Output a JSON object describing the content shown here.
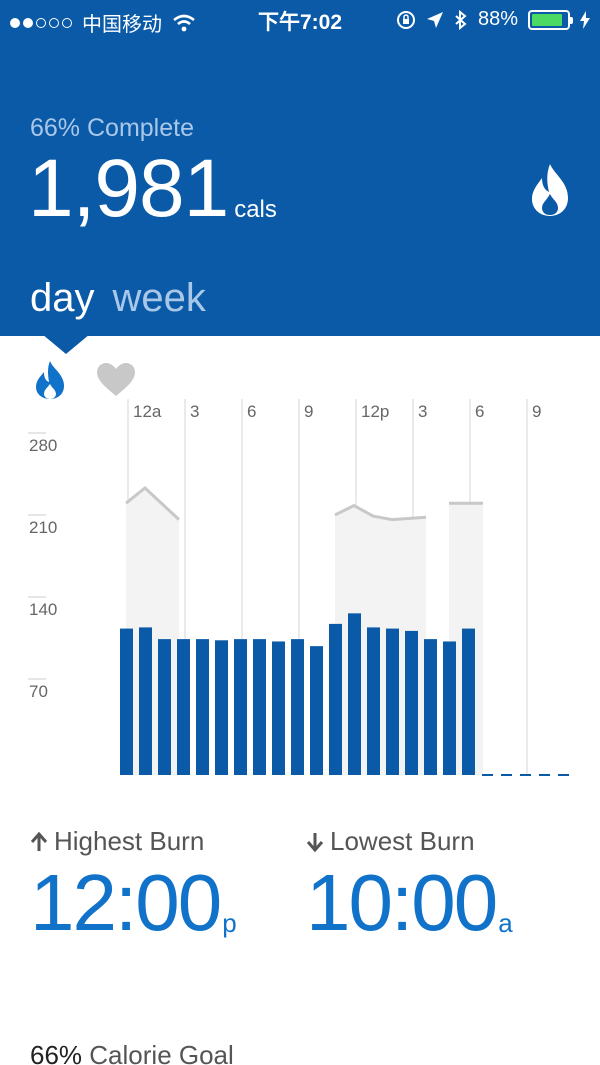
{
  "status_bar": {
    "carrier": "中国移动",
    "time": "下午7:02",
    "battery_percent": "88%",
    "battery_level": 0.88,
    "signal_bars_filled": 2,
    "signal_bars_total": 5
  },
  "header": {
    "progress_text": "66% Complete",
    "calories_value": "1,981",
    "calories_unit": "cals",
    "icon": "flame-icon"
  },
  "tabs": [
    {
      "label": "day",
      "active": true
    },
    {
      "label": "week",
      "active": false
    }
  ],
  "chart_toggles": [
    {
      "icon": "flame-icon",
      "active": true
    },
    {
      "icon": "heart-icon",
      "active": false
    }
  ],
  "chart_data": {
    "type": "bar",
    "x_tick_labels": [
      "12a",
      "3",
      "6",
      "9",
      "12p",
      "3",
      "6",
      "9"
    ],
    "y_tick_labels": [
      "280",
      "210",
      "140",
      "70"
    ],
    "y_ticks": [
      280,
      210,
      140,
      70
    ],
    "ylim": [
      0,
      300
    ],
    "hours": [
      0,
      1,
      2,
      3,
      4,
      5,
      6,
      7,
      8,
      9,
      10,
      11,
      12,
      13,
      14,
      15,
      16,
      17,
      18,
      19,
      20,
      21,
      22,
      23
    ],
    "bar_values": [
      125,
      126,
      116,
      116,
      116,
      115,
      116,
      116,
      114,
      116,
      110,
      129,
      138,
      126,
      125,
      123,
      116,
      114,
      125,
      null,
      null,
      null,
      null,
      null
    ],
    "heart_rate_segments": [
      {
        "hours": [
          0,
          1,
          2
        ],
        "values": [
          232,
          245,
          218
        ]
      },
      {
        "hours": [
          11,
          12,
          13,
          14,
          15
        ],
        "values": [
          222,
          230,
          221,
          218,
          220
        ]
      },
      {
        "hours": [
          17,
          18
        ],
        "values": [
          232,
          232
        ]
      }
    ],
    "bar_color": "#0a5aa8",
    "line_color": "#c8c8c8"
  },
  "stats": {
    "highest": {
      "label": "Highest Burn",
      "time": "12:00",
      "suffix": "p"
    },
    "lowest": {
      "label": "Lowest Burn",
      "time": "10:00",
      "suffix": "a"
    }
  },
  "goal": {
    "percent": "66%",
    "label": "Calorie Goal"
  },
  "colors": {
    "primary": "#0a5aa8",
    "accent": "#1172c9",
    "muted_header_text": "#a9c7e8"
  }
}
